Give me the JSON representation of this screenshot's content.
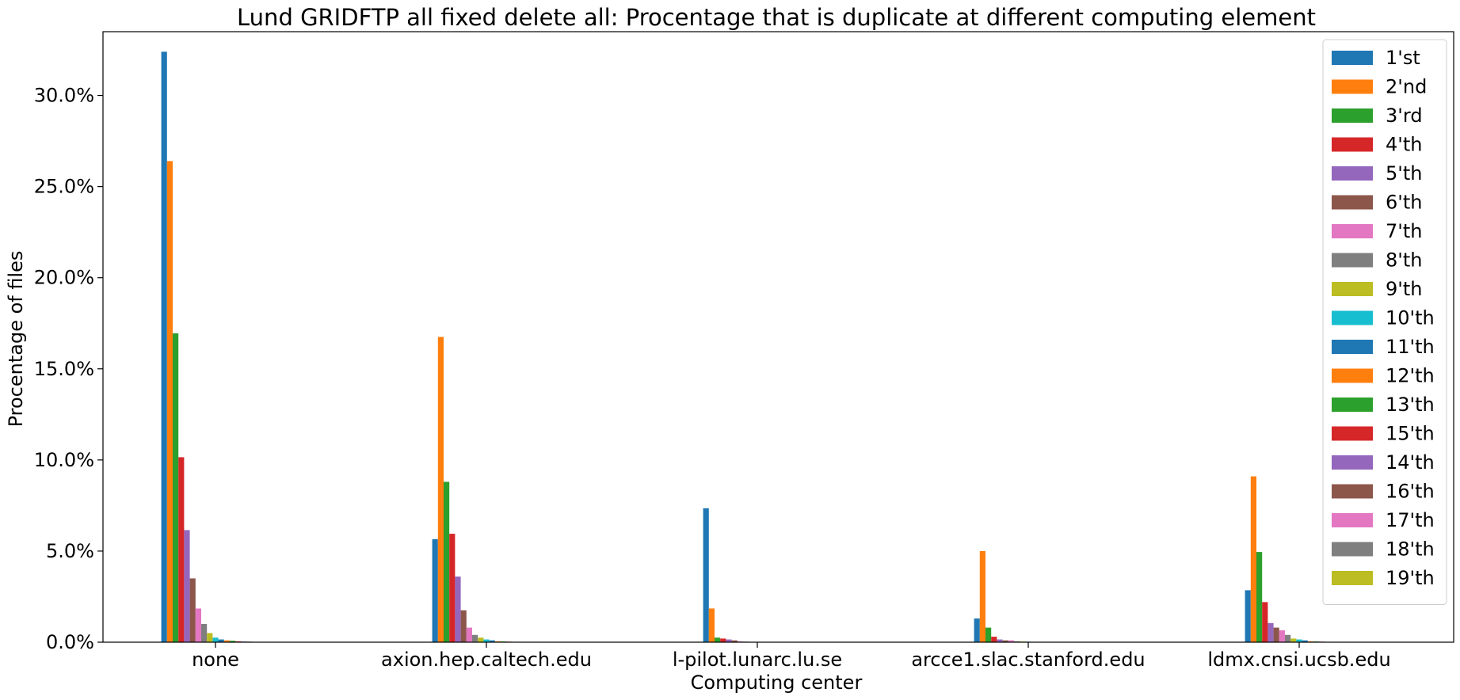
{
  "chart_data": {
    "type": "bar",
    "title": "Lund GRIDFTP all fixed delete all: Procentage that is duplicate at different computing element",
    "xlabel": "Computing center",
    "ylabel": "Procentage of files",
    "ylim": [
      0,
      33.5
    ],
    "yticks": [
      0,
      5,
      10,
      15,
      20,
      25,
      30
    ],
    "ytick_labels": [
      "0.0%",
      "5.0%",
      "10.0%",
      "15.0%",
      "20.0%",
      "25.0%",
      "30.0%"
    ],
    "categories": [
      "none",
      "axion.hep.caltech.edu",
      "l-pilot.lunarc.lu.se",
      "arcce1.slac.stanford.edu",
      "ldmx.cnsi.ucsb.edu"
    ],
    "legend_position": "upper right",
    "grid": false,
    "series": [
      {
        "name": "1'st",
        "color": "#1f77b4",
        "values": [
          32.4,
          5.65,
          7.35,
          1.3,
          2.85
        ]
      },
      {
        "name": "2'nd",
        "color": "#ff7f0e",
        "values": [
          26.4,
          16.75,
          1.85,
          5.0,
          9.1
        ]
      },
      {
        "name": "3'rd",
        "color": "#2ca02c",
        "values": [
          16.95,
          8.8,
          0.25,
          0.8,
          4.95
        ]
      },
      {
        "name": "4'th",
        "color": "#d62728",
        "values": [
          10.15,
          5.95,
          0.2,
          0.3,
          2.2
        ]
      },
      {
        "name": "5'th",
        "color": "#9467bd",
        "values": [
          6.15,
          3.6,
          0.15,
          0.15,
          1.05
        ]
      },
      {
        "name": "6'th",
        "color": "#8c564b",
        "values": [
          3.5,
          1.75,
          0.1,
          0.1,
          0.8
        ]
      },
      {
        "name": "7'th",
        "color": "#e377c2",
        "values": [
          1.85,
          0.8,
          0.05,
          0.1,
          0.65
        ]
      },
      {
        "name": "8'th",
        "color": "#7f7f7f",
        "values": [
          1.0,
          0.4,
          0.03,
          0.05,
          0.4
        ]
      },
      {
        "name": "9'th",
        "color": "#bcbd22",
        "values": [
          0.5,
          0.25,
          0.02,
          0.04,
          0.2
        ]
      },
      {
        "name": "10'th",
        "color": "#17becf",
        "values": [
          0.25,
          0.15,
          0.01,
          0.03,
          0.15
        ]
      },
      {
        "name": "11'th",
        "color": "#1f77b4",
        "values": [
          0.15,
          0.1,
          0.01,
          0.02,
          0.1
        ]
      },
      {
        "name": "12'th",
        "color": "#ff7f0e",
        "values": [
          0.1,
          0.05,
          0.0,
          0.02,
          0.05
        ]
      },
      {
        "name": "13'th",
        "color": "#2ca02c",
        "values": [
          0.08,
          0.04,
          0.0,
          0.01,
          0.04
        ]
      },
      {
        "name": "15'th",
        "color": "#d62728",
        "values": [
          0.05,
          0.03,
          0.0,
          0.01,
          0.03
        ]
      },
      {
        "name": "14'th",
        "color": "#9467bd",
        "values": [
          0.04,
          0.02,
          0.0,
          0.0,
          0.02
        ]
      },
      {
        "name": "16'th",
        "color": "#8c564b",
        "values": [
          0.03,
          0.02,
          0.0,
          0.0,
          0.01
        ]
      },
      {
        "name": "17'th",
        "color": "#e377c2",
        "values": [
          0.02,
          0.01,
          0.0,
          0.0,
          0.01
        ]
      },
      {
        "name": "18'th",
        "color": "#7f7f7f",
        "values": [
          0.01,
          0.01,
          0.0,
          0.0,
          0.0
        ]
      },
      {
        "name": "19'th",
        "color": "#bcbd22",
        "values": [
          0.01,
          0.0,
          0.0,
          0.0,
          0.0
        ]
      }
    ]
  }
}
